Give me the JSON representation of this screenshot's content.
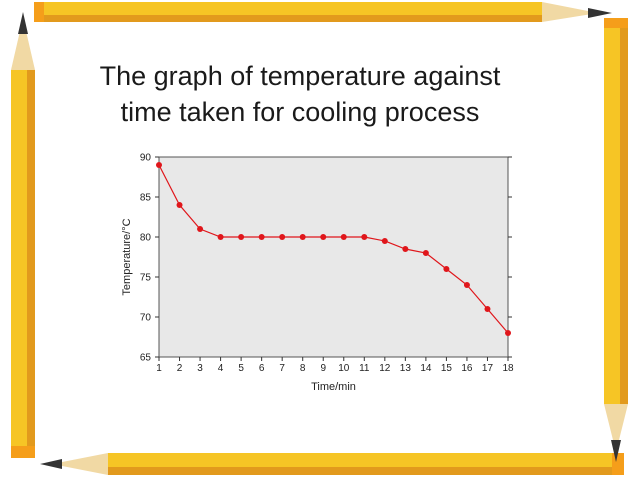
{
  "slide": {
    "title_line1": "The graph of temperature against",
    "title_line2": "time taken for cooling process"
  },
  "chart_data": {
    "type": "line",
    "title": "",
    "xlabel": "Time/min",
    "ylabel": "Temperature/°C",
    "xlim": [
      1,
      18
    ],
    "ylim": [
      65,
      90
    ],
    "x_ticks": [
      1,
      2,
      3,
      4,
      5,
      6,
      7,
      8,
      9,
      10,
      11,
      12,
      13,
      14,
      15,
      16,
      17,
      18
    ],
    "y_ticks": [
      65,
      70,
      75,
      80,
      85,
      90
    ],
    "grid": false,
    "series": [
      {
        "name": "",
        "color": "#e0161b",
        "x": [
          1,
          2,
          3,
          4,
          5,
          6,
          7,
          8,
          9,
          10,
          11,
          12,
          13,
          14,
          15,
          16,
          17,
          18
        ],
        "y": [
          89,
          84,
          81,
          80,
          80,
          80,
          80,
          80,
          80,
          80,
          80,
          79.5,
          78.5,
          78,
          76,
          74,
          71,
          68
        ]
      }
    ],
    "plot_background": "#e8e8e8"
  },
  "colors": {
    "pencil_body": "#f6c525",
    "pencil_shadow": "#e29a1d",
    "pencil_wood": "#f1d9a4",
    "pencil_lead": "#333333",
    "pencil_eraser": "#f59e1a"
  }
}
